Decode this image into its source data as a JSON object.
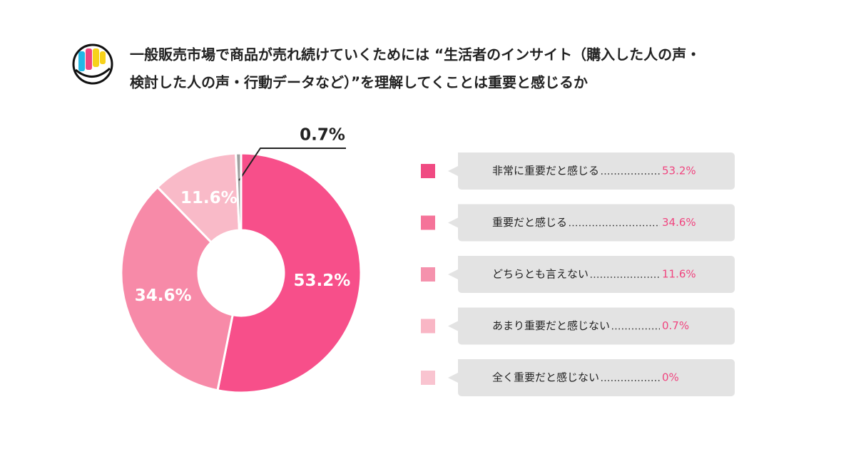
{
  "chart_data": {
    "type": "donut",
    "title": [
      "一般販売市場で商品が売れ続けていくためには “生活者のインサイト（購入した人の声・",
      "検討した人の声・行動データなど）”を理解してくことは重要と感じるか"
    ],
    "categories": [
      "非常に重要だと感じる",
      "重要だと感じる",
      "どちらとも言えない",
      "あまり重要だと感じない",
      "全く重要だと感じない"
    ],
    "values": [
      53.2,
      34.6,
      11.6,
      0.7,
      0
    ],
    "value_labels": [
      "53.2%",
      "34.6%",
      "11.6%",
      "0.7%",
      "0%"
    ],
    "colors": [
      "#f74f8a",
      "#f78aa8",
      "#f9bac8",
      "#a0a0a0",
      "#f9c4d0"
    ],
    "legend_colors": [
      "#f04a82",
      "#f57399",
      "#f592ad",
      "#f9b6c5",
      "#f9c4d0"
    ]
  }
}
